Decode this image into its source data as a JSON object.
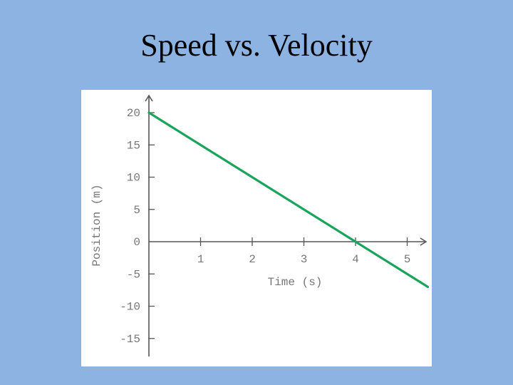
{
  "slide": {
    "title": "Speed vs. Velocity"
  },
  "chart_data": {
    "type": "line",
    "title": "",
    "xlabel": "Time (s)",
    "ylabel": "Position (m)",
    "x_ticks": [
      1,
      2,
      3,
      4,
      5
    ],
    "y_ticks": [
      20,
      15,
      10,
      5,
      0,
      -5,
      -10,
      -15
    ],
    "xlim": [
      0,
      5.4
    ],
    "ylim": [
      -18,
      22
    ],
    "grid": false,
    "legend": "none",
    "colors": {
      "line": "#1aa35a",
      "axis": "#555555",
      "text": "#777777"
    },
    "series": [
      {
        "x": [
          0,
          5.4
        ],
        "y": [
          20,
          -7
        ]
      }
    ]
  }
}
